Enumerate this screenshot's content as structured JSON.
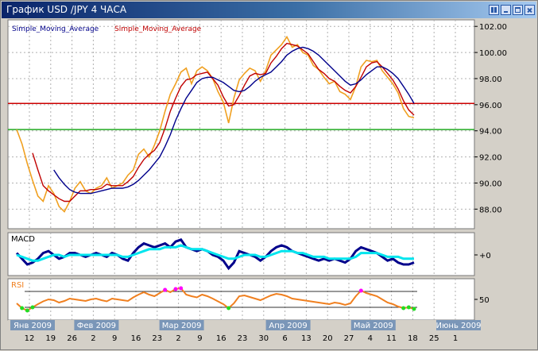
{
  "window": {
    "title": "График USD /JPY  4 ЧАСА",
    "titlebar_color": "#0a246a"
  },
  "chart_data": [
    {
      "type": "line",
      "panel": "price",
      "legend": [
        "Simple_Moving_Average",
        "Simple_Moving_Average"
      ],
      "legend_colors": [
        "#00008b",
        "#c00000"
      ],
      "x_date_ticks": [
        "12",
        "19",
        "26",
        "2",
        "9",
        "16",
        "23",
        "2",
        "9",
        "16",
        "23",
        "30",
        "6",
        "13",
        "20",
        "27",
        "4",
        "11",
        "18",
        "25",
        "1"
      ],
      "month_labels": [
        "Янв 2009",
        "Фев 2009",
        "Мар 2009",
        "Апр 2009",
        "Май 2009",
        "Июнь 2009"
      ],
      "yticks": [
        "102.00",
        "100.00",
        "98.00",
        "96.00",
        "94.00",
        "92.00",
        "90.00",
        "88.00"
      ],
      "ylim": [
        86.5,
        102.5
      ],
      "grid": true,
      "horizontal_levels": [
        {
          "value": 96.1,
          "color": "#cc0000"
        },
        {
          "value": 94.1,
          "color": "#22aa22"
        }
      ],
      "series": [
        {
          "color": "#f0a020",
          "values": [
            94.1,
            93.0,
            91.5,
            90.2,
            89.0,
            88.6,
            89.8,
            89.2,
            88.2,
            87.8,
            88.6,
            89.6,
            90.1,
            89.4,
            89.2,
            89.6,
            89.8,
            90.4,
            89.6,
            89.8,
            90.0,
            90.6,
            91.0,
            92.2,
            92.6,
            92.0,
            92.9,
            94.0,
            95.5,
            96.8,
            97.6,
            98.5,
            98.8,
            97.6,
            98.6,
            98.9,
            98.6,
            98.0,
            97.0,
            96.2,
            94.6,
            96.5,
            97.9,
            98.4,
            98.8,
            98.6,
            97.8,
            98.6,
            99.8,
            100.2,
            100.6,
            101.2,
            100.4,
            100.6,
            100.0,
            99.8,
            99.0,
            98.7,
            98.1,
            97.6,
            97.8,
            97.0,
            96.8,
            96.4,
            97.4,
            98.9,
            99.4,
            99.3,
            99.4,
            98.6,
            98.1,
            97.6,
            96.9,
            95.7,
            95.1,
            95.0
          ]
        },
        {
          "color": "#c00000",
          "values": [
            null,
            null,
            null,
            92.3,
            91.0,
            89.8,
            89.4,
            89.1,
            88.8,
            88.6,
            88.6,
            89.0,
            89.4,
            89.4,
            89.5,
            89.5,
            89.6,
            89.9,
            89.8,
            89.8,
            89.8,
            90.1,
            90.5,
            91.2,
            91.8,
            92.2,
            92.5,
            93.1,
            94.2,
            95.5,
            96.5,
            97.4,
            97.9,
            98.0,
            98.3,
            98.4,
            98.5,
            98.0,
            97.5,
            96.6,
            95.9,
            96.0,
            96.7,
            97.5,
            98.2,
            98.4,
            98.3,
            98.4,
            99.2,
            99.7,
            100.3,
            100.7,
            100.6,
            100.5,
            100.2,
            99.9,
            99.3,
            98.7,
            98.4,
            98.0,
            97.8,
            97.4,
            97.1,
            96.9,
            97.4,
            98.1,
            98.9,
            99.2,
            99.3,
            98.9,
            98.4,
            97.9,
            97.2,
            96.3,
            95.6,
            95.2
          ]
        },
        {
          "color": "#00008b",
          "values": [
            null,
            null,
            null,
            null,
            null,
            null,
            null,
            91.0,
            90.4,
            89.9,
            89.5,
            89.3,
            89.2,
            89.2,
            89.2,
            89.3,
            89.4,
            89.5,
            89.6,
            89.6,
            89.6,
            89.7,
            89.9,
            90.2,
            90.6,
            91.0,
            91.5,
            92.0,
            92.8,
            93.7,
            94.8,
            95.7,
            96.5,
            97.1,
            97.7,
            98.0,
            98.1,
            98.1,
            97.9,
            97.7,
            97.4,
            97.1,
            97.0,
            97.1,
            97.4,
            97.8,
            98.1,
            98.3,
            98.5,
            98.9,
            99.3,
            99.8,
            100.1,
            100.3,
            100.4,
            100.3,
            100.1,
            99.8,
            99.4,
            99.0,
            98.6,
            98.2,
            97.8,
            97.5,
            97.6,
            97.9,
            98.3,
            98.6,
            98.9,
            98.9,
            98.7,
            98.4,
            98.0,
            97.4,
            96.8,
            96.1
          ]
        }
      ]
    },
    {
      "type": "line",
      "panel": "macd",
      "title": "MACD",
      "ytick": "+0",
      "ylim": [
        -1,
        1
      ],
      "series": [
        {
          "color": "#00008b",
          "values": [
            0.1,
            -0.2,
            -0.5,
            -0.4,
            -0.2,
            0.1,
            0.2,
            0.0,
            -0.2,
            -0.1,
            0.1,
            0.1,
            0.0,
            -0.1,
            0.0,
            0.1,
            0.0,
            -0.1,
            0.1,
            0.0,
            -0.2,
            -0.3,
            0.1,
            0.4,
            0.6,
            0.5,
            0.4,
            0.5,
            0.6,
            0.4,
            0.7,
            0.8,
            0.4,
            0.3,
            0.2,
            0.3,
            0.2,
            0.0,
            -0.1,
            -0.3,
            -0.7,
            -0.4,
            0.2,
            0.1,
            0.0,
            -0.1,
            -0.3,
            -0.1,
            0.2,
            0.4,
            0.5,
            0.4,
            0.2,
            0.1,
            0.0,
            -0.1,
            -0.2,
            -0.3,
            -0.2,
            -0.3,
            -0.2,
            -0.3,
            -0.4,
            -0.2,
            0.2,
            0.4,
            0.3,
            0.2,
            0.1,
            -0.1,
            -0.3,
            -0.2,
            -0.4,
            -0.5,
            -0.5,
            -0.4
          ]
        },
        {
          "color": "#00e5ee",
          "values": [
            0.0,
            -0.1,
            -0.2,
            -0.3,
            -0.3,
            -0.2,
            -0.1,
            0.0,
            0.0,
            -0.1,
            0.0,
            0.0,
            0.0,
            0.0,
            0.0,
            0.0,
            0.0,
            0.0,
            0.0,
            0.0,
            -0.1,
            -0.1,
            0.0,
            0.1,
            0.2,
            0.3,
            0.3,
            0.3,
            0.4,
            0.4,
            0.4,
            0.5,
            0.4,
            0.3,
            0.3,
            0.3,
            0.2,
            0.1,
            0.0,
            -0.1,
            -0.2,
            -0.2,
            -0.1,
            0.0,
            0.0,
            0.0,
            -0.1,
            -0.1,
            0.0,
            0.1,
            0.2,
            0.2,
            0.2,
            0.1,
            0.1,
            0.0,
            -0.1,
            -0.1,
            -0.1,
            -0.2,
            -0.2,
            -0.2,
            -0.2,
            -0.2,
            -0.1,
            0.1,
            0.1,
            0.1,
            0.1,
            0.0,
            -0.1,
            -0.1,
            -0.1,
            -0.2,
            -0.2,
            -0.2
          ]
        }
      ]
    },
    {
      "type": "line",
      "panel": "rsi",
      "title": "RSI",
      "ytick": "50",
      "ylim": [
        0,
        100
      ],
      "levels": [
        70,
        30
      ],
      "series": [
        {
          "color": "#f08020",
          "values": [
            40,
            28,
            22,
            30,
            38,
            45,
            50,
            48,
            42,
            46,
            52,
            50,
            48,
            46,
            50,
            52,
            48,
            45,
            52,
            50,
            48,
            46,
            55,
            62,
            68,
            62,
            58,
            66,
            74,
            68,
            76,
            78,
            62,
            58,
            55,
            62,
            58,
            52,
            45,
            38,
            28,
            40,
            58,
            60,
            56,
            52,
            48,
            54,
            60,
            64,
            62,
            58,
            52,
            50,
            48,
            46,
            44,
            42,
            40,
            38,
            42,
            40,
            36,
            40,
            58,
            72,
            66,
            62,
            58,
            50,
            42,
            38,
            32,
            28,
            30,
            26
          ]
        }
      ]
    }
  ]
}
